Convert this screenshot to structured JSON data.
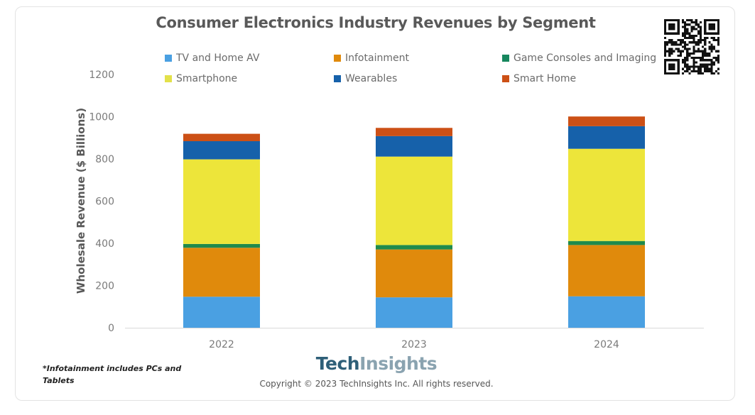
{
  "chart_data": {
    "type": "bar",
    "stacked": true,
    "title": "Consumer Electronics Industry Revenues by Segment",
    "xlabel": "",
    "ylabel": "Wholesale Revenue ($ Billions)",
    "ylim": [
      0,
      1200
    ],
    "yticks": [
      0,
      200,
      400,
      600,
      800,
      1000,
      1200
    ],
    "grid": false,
    "legend_position": "top",
    "categories": [
      "2022",
      "2023",
      "2024"
    ],
    "series": [
      {
        "name": "TV and Home AV",
        "color": "#4aa0e2",
        "values": [
          147,
          144,
          149
        ]
      },
      {
        "name": "Infotainment",
        "color": "#e08a0c",
        "values": [
          232,
          227,
          243
        ]
      },
      {
        "name": "Game Consoles and Imaging",
        "color": "#1f8a4c",
        "values": [
          18,
          21,
          19
        ]
      },
      {
        "name": "Smartphone",
        "color": "#ede53a",
        "values": [
          401,
          419,
          437
        ]
      },
      {
        "name": "Wearables",
        "color": "#1661aa",
        "values": [
          86,
          97,
          107
        ]
      },
      {
        "name": "Smart Home",
        "color": "#cc5016",
        "values": [
          35,
          39,
          46
        ]
      }
    ]
  },
  "legend": {
    "items": [
      {
        "label": "TV and Home AV",
        "color": "#4aa0e2"
      },
      {
        "label": "Infotainment",
        "color": "#e08a0c"
      },
      {
        "label": "Game Consoles and Imaging",
        "color": "#17875e"
      },
      {
        "label": "Smartphone",
        "color": "#e3e14a"
      },
      {
        "label": "Wearables",
        "color": "#1661aa"
      },
      {
        "label": "Smart Home",
        "color": "#cc5016"
      }
    ]
  },
  "footnote": "*Infotainment includes PCs and Tablets",
  "brand": {
    "part1": "Tech",
    "part2": "Insights"
  },
  "copyright": "Copyright © 2023 TechInsights Inc.  All rights reserved.",
  "qr_icon": "qr-code-icon"
}
